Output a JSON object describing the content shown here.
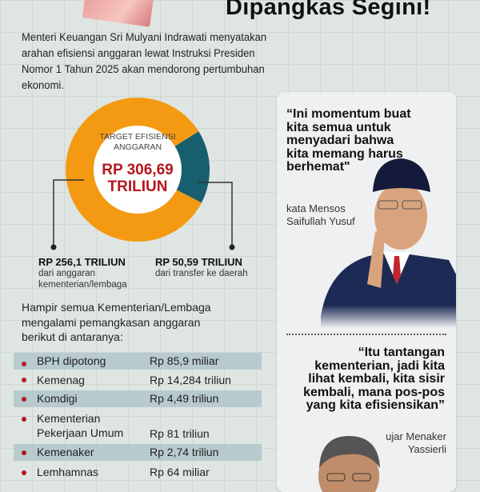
{
  "header": {
    "title": "Dipangkas Segini!"
  },
  "intro": "Menteri Keuangan Sri Mulyani Indrawati menyatakan arahan efisiensi anggaran lewat Instruksi Presiden Nomor 1 Tahun 2025 akan mendorong pertumbuhan ekonomi.",
  "chart_data": {
    "type": "pie",
    "variant": "donut",
    "center_label": "TARGET EFISIENSI ANGGARAN",
    "center_value": "RP 306,69 TRILIUN",
    "total": 306.69,
    "slices": [
      {
        "value": 256.1,
        "label": "RP 256,1 TRILIUN",
        "description": "dari anggaran kementerian/lembaga",
        "color": "#f39a12"
      },
      {
        "value": 50.59,
        "label": "RP 50,59 TRILIUN",
        "description": "dari transfer ke daerah",
        "color": "#175e6f"
      }
    ]
  },
  "list": {
    "intro": "Hampir semua Kementerian/Lembaga mengalami pemangkasan anggaran berikut di antaranya:",
    "items": [
      {
        "name": "BPH dipotong",
        "value": "Rp 85,9 miliar"
      },
      {
        "name": "Kemenag",
        "value": "Rp 14,284 triliun"
      },
      {
        "name": "Komdigi",
        "value": "Rp 4,49 triliun"
      },
      {
        "name": "Kementerian Pekerjaan Umum",
        "value": "Rp 81 triliun"
      },
      {
        "name": "Kemenaker",
        "value": "Rp 2,74 triliun"
      },
      {
        "name": "Lemhamnas",
        "value": "Rp 64 miliar"
      }
    ]
  },
  "quotes": [
    {
      "text": "“Ini momentum buat kita semua untuk menyadari bahwa kita memang harus berhemat\"",
      "attribution": "kata Mensos Saifullah Yusuf"
    },
    {
      "text": "“Itu tantangan kementerian, jadi kita lihat kembali, kita sisir kembali, mana pos-pos yang kita efisiensikan”",
      "attribution": "ujar Menaker Yassierli"
    }
  ],
  "colors": {
    "accent_red": "#b5161e",
    "orange": "#f39a12",
    "teal": "#175e6f",
    "row_shade": "#b7cbcf"
  }
}
